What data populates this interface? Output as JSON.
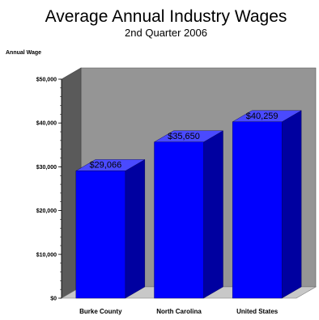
{
  "chart_data": {
    "type": "bar",
    "title": "Average Annual Industry Wages",
    "subtitle": "2nd Quarter 2006",
    "ylabel": "Annual Wage",
    "xlabel": "",
    "categories": [
      "Burke County",
      "North Carolina",
      "United States"
    ],
    "values": [
      29066,
      35650,
      40259
    ],
    "data_labels": [
      "$29,066",
      "$35,650",
      "$40,259"
    ],
    "yticks": [
      0,
      10000,
      20000,
      30000,
      40000,
      50000
    ],
    "ytick_labels": [
      "$0",
      "$10,000",
      "$20,000",
      "$30,000",
      "$40,000",
      "$50,000"
    ],
    "ylim": [
      0,
      50000
    ],
    "style": "3d",
    "grid": false,
    "legend": "none",
    "colors": {
      "bar_front": "#0000ff",
      "bar_side": "#0000a0",
      "bar_top": "#4a4aff",
      "back_wall": "#959595",
      "left_wall": "#5a5a5a",
      "floor": "#c8c8c8"
    }
  }
}
